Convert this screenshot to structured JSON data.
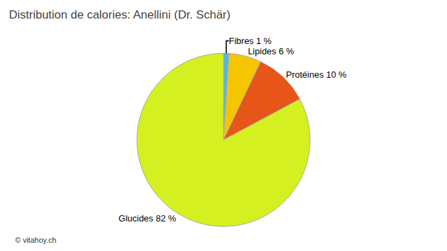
{
  "chart_data": {
    "type": "pie",
    "title": "Distribution de calories: Anellini (Dr. Schär)",
    "categories": [
      "Fibres 1 %",
      "Lipides 6 %",
      "Protéines 10 %",
      "Glucides 82 %"
    ],
    "values": [
      1,
      6,
      10,
      82
    ],
    "colors": [
      "#50b8e8",
      "#f5c500",
      "#e85518",
      "#d4f020"
    ],
    "annotations": [
      "© vitahoy.ch"
    ]
  }
}
